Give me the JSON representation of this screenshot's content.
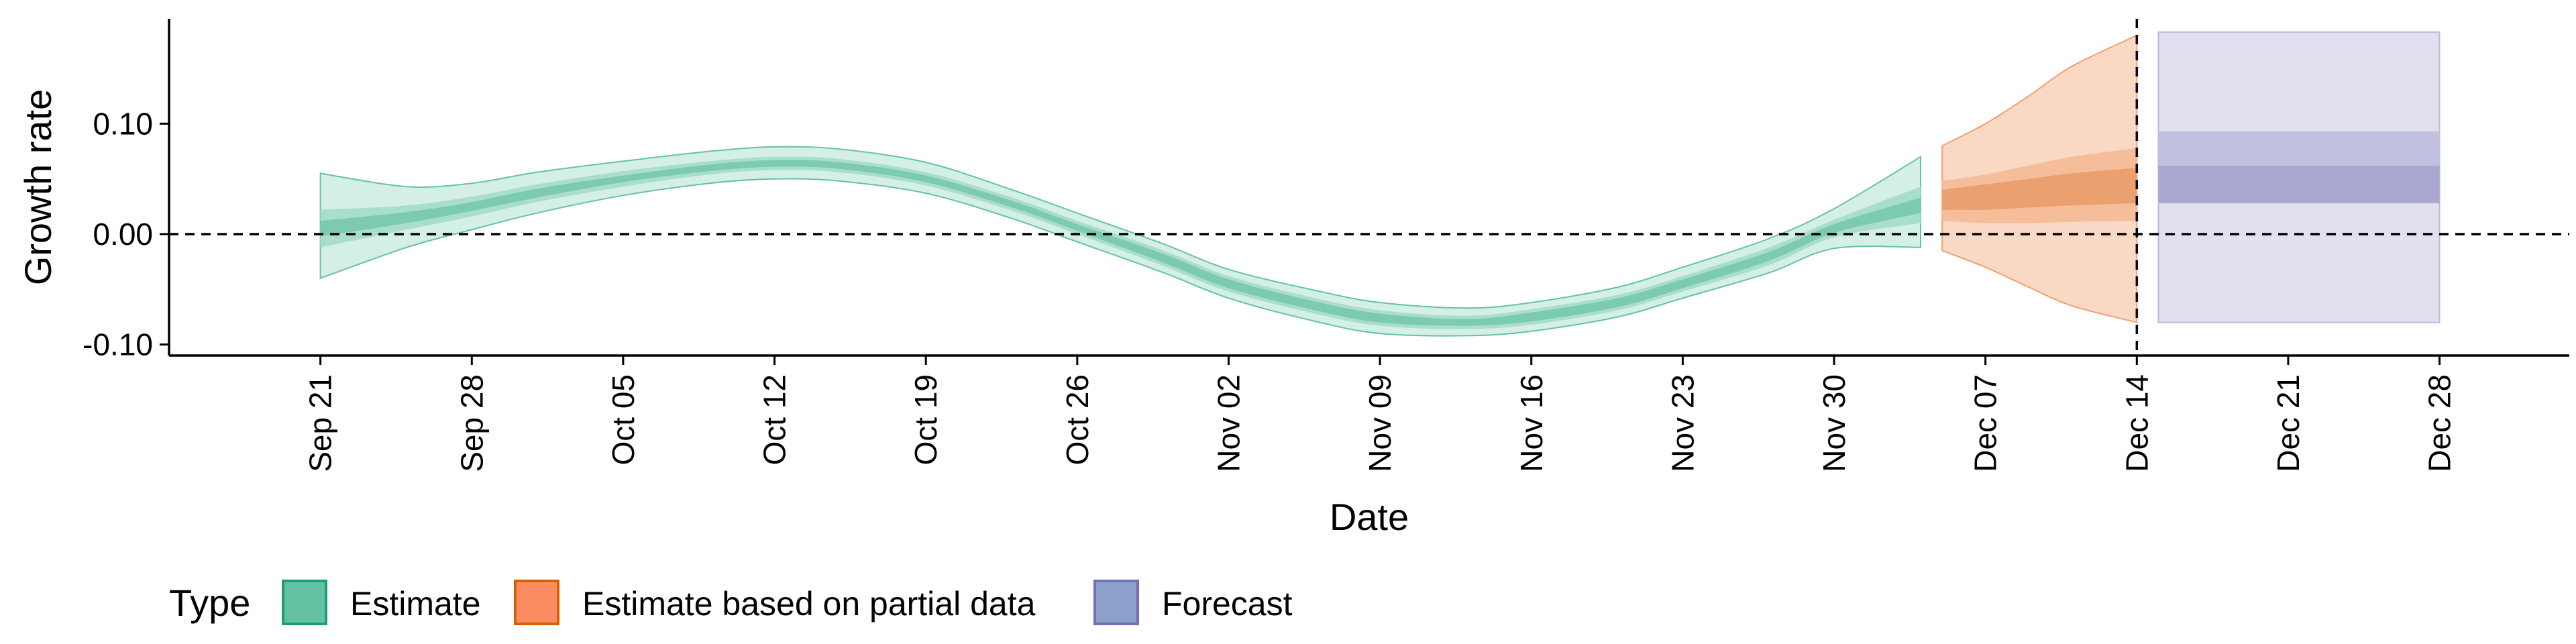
{
  "chart_data": {
    "type": "area",
    "title": "",
    "xlabel": "Date",
    "ylabel": "Growth rate",
    "x_range": [
      "2020-09-14",
      "2021-01-03"
    ],
    "ylim": [
      -0.11,
      0.195
    ],
    "y_ticks": [
      -0.1,
      0.0,
      0.1
    ],
    "y_tick_labels": [
      "-0.10",
      "0.00",
      "0.10"
    ],
    "x_ticks": [
      "2020-09-21",
      "2020-09-28",
      "2020-10-05",
      "2020-10-12",
      "2020-10-19",
      "2020-10-26",
      "2020-11-02",
      "2020-11-09",
      "2020-11-16",
      "2020-11-23",
      "2020-11-30",
      "2020-12-07",
      "2020-12-14",
      "2020-12-21",
      "2020-12-28"
    ],
    "x_tick_labels": [
      "Sep 21",
      "Sep 28",
      "Oct 05",
      "Oct 12",
      "Oct 19",
      "Oct 26",
      "Nov 02",
      "Nov 09",
      "Nov 16",
      "Nov 23",
      "Nov 30",
      "Dec 07",
      "Dec 14",
      "Dec 21",
      "Dec 28"
    ],
    "hline_y": 0,
    "vline_x": "2020-12-14",
    "grid": false,
    "legend": {
      "title": "Type",
      "position": "bottom-left",
      "entries": [
        {
          "label": "Estimate",
          "color": "#66C2A5",
          "border": "#1B9E77"
        },
        {
          "label": "Estimate based on partial data",
          "color": "#FC8D62",
          "border": "#D95F02"
        },
        {
          "label": "Forecast",
          "color": "#8DA0CB",
          "border": "#7570B3"
        }
      ]
    },
    "series": [
      {
        "name": "Estimate",
        "color": "#66C2A5",
        "x": [
          "2020-09-21",
          "2020-09-25",
          "2020-09-28",
          "2020-10-01",
          "2020-10-05",
          "2020-10-09",
          "2020-10-12",
          "2020-10-15",
          "2020-10-19",
          "2020-10-23",
          "2020-10-26",
          "2020-10-30",
          "2020-11-02",
          "2020-11-06",
          "2020-11-09",
          "2020-11-13",
          "2020-11-16",
          "2020-11-20",
          "2020-11-23",
          "2020-11-27",
          "2020-11-30",
          "2020-12-04"
        ],
        "median": [
          0.005,
          0.015,
          0.025,
          0.037,
          0.05,
          0.06,
          0.064,
          0.062,
          0.05,
          0.027,
          0.006,
          -0.022,
          -0.045,
          -0.065,
          -0.076,
          -0.08,
          -0.075,
          -0.062,
          -0.045,
          -0.02,
          0.005,
          0.026
        ],
        "lower_90": [
          -0.04,
          -0.012,
          0.004,
          0.019,
          0.035,
          0.046,
          0.05,
          0.048,
          0.037,
          0.014,
          -0.007,
          -0.035,
          -0.058,
          -0.079,
          -0.09,
          -0.092,
          -0.088,
          -0.075,
          -0.058,
          -0.035,
          -0.013,
          -0.012
        ],
        "upper_90": [
          0.055,
          0.043,
          0.046,
          0.056,
          0.066,
          0.075,
          0.079,
          0.077,
          0.065,
          0.04,
          0.019,
          -0.009,
          -0.032,
          -0.051,
          -0.062,
          -0.067,
          -0.062,
          -0.048,
          -0.03,
          -0.004,
          0.023,
          0.07
        ],
        "lower_50": [
          -0.012,
          0.004,
          0.016,
          0.029,
          0.043,
          0.054,
          0.058,
          0.056,
          0.044,
          0.021,
          0.0,
          -0.029,
          -0.052,
          -0.072,
          -0.083,
          -0.086,
          -0.082,
          -0.069,
          -0.052,
          -0.028,
          -0.003,
          0.01
        ],
        "upper_50": [
          0.022,
          0.026,
          0.034,
          0.045,
          0.057,
          0.066,
          0.07,
          0.068,
          0.056,
          0.033,
          0.012,
          -0.015,
          -0.038,
          -0.058,
          -0.069,
          -0.074,
          -0.068,
          -0.055,
          -0.038,
          -0.012,
          0.013,
          0.043
        ],
        "lower_20": [
          -0.002,
          0.01,
          0.021,
          0.033,
          0.047,
          0.057,
          0.061,
          0.059,
          0.047,
          0.024,
          0.003,
          -0.026,
          -0.049,
          -0.069,
          -0.08,
          -0.083,
          -0.079,
          -0.066,
          -0.049,
          -0.024,
          0.001,
          0.019
        ],
        "upper_20": [
          0.012,
          0.02,
          0.029,
          0.041,
          0.053,
          0.063,
          0.067,
          0.065,
          0.053,
          0.03,
          0.009,
          -0.018,
          -0.041,
          -0.061,
          -0.072,
          -0.077,
          -0.071,
          -0.058,
          -0.041,
          -0.016,
          0.009,
          0.033
        ]
      },
      {
        "name": "Estimate based on partial data",
        "color": "#FC8D62",
        "x": [
          "2020-12-05",
          "2020-12-07",
          "2020-12-09",
          "2020-12-11",
          "2020-12-14"
        ],
        "median": [
          0.03,
          0.034,
          0.038,
          0.041,
          0.045
        ],
        "lower_90": [
          -0.015,
          -0.03,
          -0.048,
          -0.065,
          -0.08
        ],
        "upper_90": [
          0.08,
          0.1,
          0.125,
          0.152,
          0.18
        ],
        "lower_50": [
          0.012,
          0.01,
          0.01,
          0.011,
          0.012
        ],
        "upper_50": [
          0.048,
          0.054,
          0.062,
          0.07,
          0.078
        ],
        "lower_20": [
          0.022,
          0.022,
          0.024,
          0.026,
          0.028
        ],
        "upper_20": [
          0.04,
          0.045,
          0.05,
          0.055,
          0.06
        ]
      },
      {
        "name": "Forecast",
        "color": "#8DA0CB",
        "x": [
          "2020-12-15",
          "2020-12-28"
        ],
        "lower_90": [
          -0.08,
          -0.08
        ],
        "upper_90": [
          0.183,
          0.183
        ],
        "lower_50": [
          0.028,
          0.028
        ],
        "upper_50": [
          0.093,
          0.093
        ],
        "lower_20": [
          0.028,
          0.028
        ],
        "upper_20": [
          0.062,
          0.062
        ]
      }
    ]
  }
}
